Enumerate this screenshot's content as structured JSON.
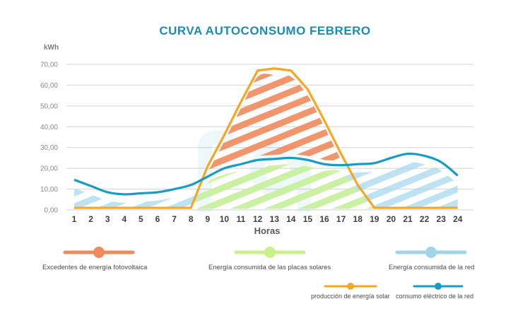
{
  "chart_data": {
    "type": "line",
    "title": "CURVA AUTOCONSUMO FEBRERO",
    "ylabel": "kWh",
    "xlabel": "Horas",
    "ylim": [
      0,
      70
    ],
    "yticks": [
      "0,00",
      "10,00",
      "20,00",
      "30,00",
      "40,00",
      "50,00",
      "60,00",
      "70,00"
    ],
    "x": [
      1,
      2,
      3,
      4,
      5,
      6,
      7,
      8,
      9,
      10,
      11,
      12,
      13,
      14,
      15,
      16,
      17,
      18,
      19,
      20,
      21,
      22,
      23,
      24
    ],
    "grid": true,
    "series": [
      {
        "name": "producción de energía solar",
        "color": "#f5a623",
        "values": [
          1,
          1,
          1,
          1,
          1,
          1,
          1,
          1,
          21,
          36,
          52,
          67,
          68,
          67,
          58,
          43,
          27,
          12,
          1,
          1,
          1,
          1,
          1,
          1
        ]
      },
      {
        "name": "consumo eléctrico de la red",
        "color": "#1a9bc4",
        "values": [
          14.5,
          11.5,
          8.5,
          7.5,
          8,
          8.5,
          10,
          12,
          16,
          20,
          22,
          24,
          24.5,
          25,
          24,
          22,
          21.5,
          22,
          22.5,
          25,
          27,
          26,
          23,
          16.5
        ]
      }
    ],
    "areas": [
      {
        "name": "Excedentes de energía fotovoltaica",
        "color": "#f08a5d"
      },
      {
        "name": "Energía consumida de las placas solares",
        "color": "#c8f08c"
      },
      {
        "name": "Energía consumida de la red",
        "color": "#9fd4ea"
      }
    ],
    "legend_position": "bottom"
  }
}
